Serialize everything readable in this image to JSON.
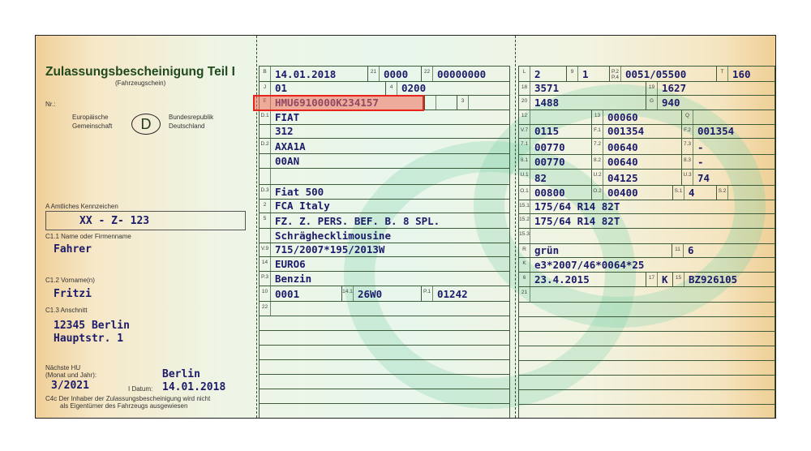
{
  "header": {
    "title": "Zulassungsbescheinigung Teil I",
    "subtitle": "(Fahrzeugschein)",
    "nr_label": "Nr.:",
    "eu_line1": "Europäische",
    "eu_line2": "Gemeinschaft",
    "country_code": "D",
    "brd_line1": "Bundesrepublik",
    "brd_line2": "Deutschland"
  },
  "holder": {
    "plate_label": "A Amtliches Kennzeichen",
    "plate": "XX - Z- 123",
    "name_label": "C1.1 Name oder Firmenname",
    "name": "Fahrer",
    "first_label": "C1.2 Vorname(n)",
    "first": "Fritzi",
    "addr_label": "C1.3 Anschnitt",
    "addr1": "12345 Berlin",
    "addr2": "Hauptstr. 1",
    "hu_label1": "Nächste HU",
    "hu_label2": "(Monat und Jahr):",
    "hu": "3/2021",
    "place": "Berlin",
    "date_label": "I Datum:",
    "date": "14.01.2018",
    "note1": "C4c Der Inhaber der Zulassungsbescheinigung wird nicht",
    "note2": "als Eigentümer des Fahrzeugs ausgewiesen"
  },
  "highlight_color": "#e8231a",
  "middle": [
    [
      {
        "code": "B",
        "value": "14.01.2018"
      },
      {
        "code": "21",
        "value": "0000"
      },
      {
        "code": "22",
        "value": "00000000"
      }
    ],
    [
      {
        "code": "J",
        "value": "01"
      },
      {
        "code": "4",
        "value": "0200"
      }
    ],
    [
      {
        "code": "E",
        "value": "HMU6910000K234157"
      },
      {
        "code": "",
        "value": ""
      },
      {
        "code": "3",
        "value": ""
      }
    ],
    [
      {
        "code": "D.1",
        "value": "FIAT"
      }
    ],
    [
      {
        "code": "",
        "value": "312"
      }
    ],
    [
      {
        "code": "D.2",
        "value": "AXA1A"
      }
    ],
    [
      {
        "code": "",
        "value": "00AN"
      }
    ],
    [
      {
        "code": "",
        "value": ""
      }
    ],
    [
      {
        "code": "D.3",
        "value": "Fiat 500"
      }
    ],
    [
      {
        "code": "2",
        "value": "FCA Italy"
      }
    ],
    [
      {
        "code": "5",
        "value": "FZ. Z. PERS. BEF. B. 8 SPL."
      }
    ],
    [
      {
        "code": "",
        "value": "Schräghecklimousine"
      }
    ],
    [
      {
        "code": "V.9",
        "value": "715/2007*195/2013W"
      }
    ],
    [
      {
        "code": "14",
        "value": "EURO6"
      }
    ],
    [
      {
        "code": "P.3",
        "value": "Benzin"
      }
    ],
    [
      {
        "code": "10",
        "value": "0001"
      },
      {
        "code": "14.1",
        "value": "26W0"
      },
      {
        "code": "P.1",
        "value": "01242"
      }
    ],
    [
      {
        "code": "22",
        "value": ""
      }
    ]
  ],
  "right": [
    [
      {
        "code": "L",
        "value": "2"
      },
      {
        "code": "9",
        "value": "1"
      },
      {
        "code": "P.2 P.4",
        "value": "0051/05500"
      },
      {
        "code": "T",
        "value": "160"
      }
    ],
    [
      {
        "code": "18",
        "value": "3571"
      },
      {
        "code": "19",
        "value": "1627"
      }
    ],
    [
      {
        "code": "20",
        "value": "1488"
      },
      {
        "code": "G",
        "value": "940"
      }
    ],
    [
      {
        "code": "12",
        "value": ""
      },
      {
        "code": "13",
        "value": "00060"
      },
      {
        "code": "Q",
        "value": ""
      }
    ],
    [
      {
        "code": "V.7",
        "value": "0115"
      },
      {
        "code": "F.1",
        "value": "001354"
      },
      {
        "code": "F.2",
        "value": "001354"
      }
    ],
    [
      {
        "code": "7.1",
        "value": "00770"
      },
      {
        "code": "7.2",
        "value": "00640"
      },
      {
        "code": "7.3",
        "value": "-"
      }
    ],
    [
      {
        "code": "8.1",
        "value": "00770"
      },
      {
        "code": "8.2",
        "value": "00640"
      },
      {
        "code": "8.3",
        "value": "-"
      }
    ],
    [
      {
        "code": "U.1",
        "value": "82"
      },
      {
        "code": "U.2",
        "value": "04125"
      },
      {
        "code": "U.3",
        "value": "74"
      }
    ],
    [
      {
        "code": "O.1",
        "value": "00800"
      },
      {
        "code": "O.2",
        "value": "00400"
      },
      {
        "code": "S.1",
        "value": "4"
      },
      {
        "code": "S.2",
        "value": ""
      }
    ],
    [
      {
        "code": "15.1",
        "value": "175/64 R14 82T"
      }
    ],
    [
      {
        "code": "15.2",
        "value": "175/64 R14 82T"
      }
    ],
    [
      {
        "code": "15.3",
        "value": ""
      }
    ],
    [
      {
        "code": "R",
        "value": "grün"
      },
      {
        "code": "11",
        "value": "6"
      }
    ],
    [
      {
        "code": "K",
        "value": "e3*2007/46*0064*25"
      }
    ],
    [
      {
        "code": "6",
        "value": "23.4.2015"
      },
      {
        "code": "17",
        "value": "K"
      },
      {
        "code": "15",
        "value": "BZ926105"
      }
    ],
    [
      {
        "code": "21",
        "value": ""
      }
    ]
  ]
}
